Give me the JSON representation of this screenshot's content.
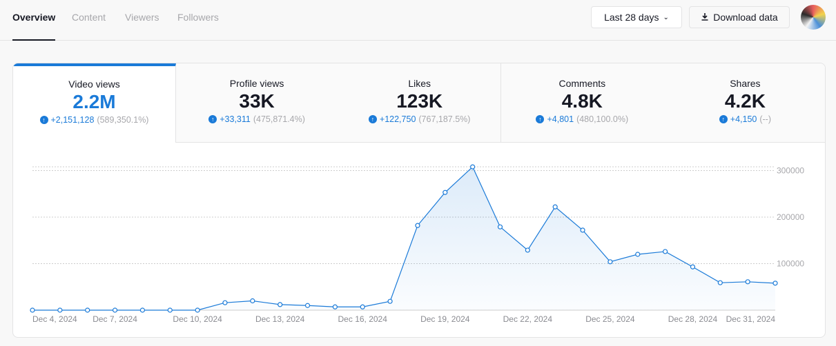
{
  "nav": {
    "tabs": [
      "Overview",
      "Content",
      "Viewers",
      "Followers"
    ]
  },
  "toolbar": {
    "date_range": "Last 28 days",
    "download": "Download data"
  },
  "metrics": [
    {
      "label": "Video views",
      "value": "2.2M",
      "delta": "+2,151,128",
      "pct": "(589,350.1%)"
    },
    {
      "label": "Profile views",
      "value": "33K",
      "delta": "+33,311",
      "pct": "(475,871.4%)"
    },
    {
      "label": "Likes",
      "value": "123K",
      "delta": "+122,750",
      "pct": "(767,187.5%)"
    },
    {
      "label": "Comments",
      "value": "4.8K",
      "delta": "+4,801",
      "pct": "(480,100.0%)"
    },
    {
      "label": "Shares",
      "value": "4.2K",
      "delta": "+4,150",
      "pct": "(--)"
    }
  ],
  "colors": {
    "accent": "#1a7ad8"
  },
  "chart_data": {
    "type": "area",
    "title": "Video views",
    "x": [
      "Dec 4",
      "Dec 5",
      "Dec 6",
      "Dec 7",
      "Dec 8",
      "Dec 9",
      "Dec 10",
      "Dec 11",
      "Dec 12",
      "Dec 13",
      "Dec 14",
      "Dec 15",
      "Dec 16",
      "Dec 17",
      "Dec 18",
      "Dec 19",
      "Dec 20",
      "Dec 21",
      "Dec 22",
      "Dec 23",
      "Dec 24",
      "Dec 25",
      "Dec 26",
      "Dec 27",
      "Dec 28",
      "Dec 29",
      "Dec 30",
      "Dec 31"
    ],
    "values": [
      0,
      0,
      0,
      0,
      0,
      0,
      0,
      16000,
      20000,
      12000,
      10000,
      7000,
      7000,
      19000,
      182000,
      253000,
      308000,
      179000,
      129000,
      222000,
      172000,
      104000,
      120000,
      126000,
      93000,
      59000,
      61000,
      58000
    ],
    "xticks": [
      "Dec 4, 2024",
      "Dec 7, 2024",
      "Dec 10, 2024",
      "Dec 13, 2024",
      "Dec 16, 2024",
      "Dec 19, 2024",
      "Dec 22, 2024",
      "Dec 25, 2024",
      "Dec 28, 2024",
      "Dec 31, 2024"
    ],
    "yticks": [
      100000,
      200000,
      300000
    ],
    "ylim": [
      0,
      310000
    ],
    "grid": true
  }
}
